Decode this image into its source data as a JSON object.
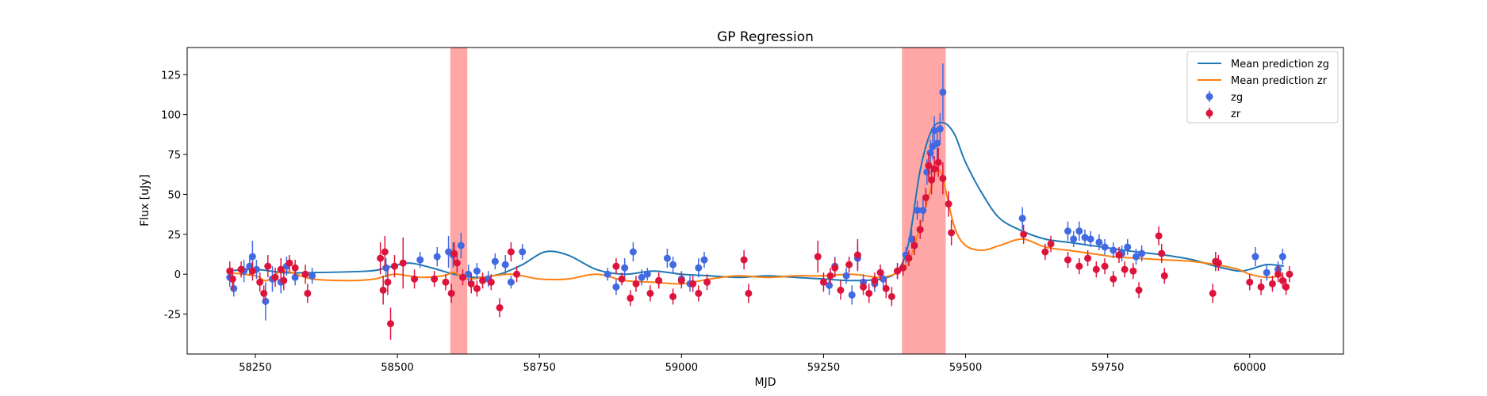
{
  "chart_data": {
    "type": "scatter",
    "title": "GP Regression",
    "xlabel": "MJD",
    "ylabel": "Flux [uJy]",
    "xlim": [
      58130,
      60165
    ],
    "ylim": [
      -50,
      142
    ],
    "xticks": [
      58250,
      58500,
      58750,
      59000,
      59250,
      59500,
      59750,
      60000
    ],
    "yticks": [
      -25,
      0,
      25,
      50,
      75,
      100,
      125
    ],
    "grid": false,
    "legend_position": "top-right",
    "colors": {
      "zg_line": "#1f77b4",
      "zr_line": "#ff7f0e",
      "zg_points": "#4169e1",
      "zr_points": "#dc143c",
      "shade": "#ff8080"
    },
    "shaded_regions": [
      [
        58593,
        58623
      ],
      [
        59388,
        59465
      ]
    ],
    "legend": [
      {
        "label": "Mean prediction zg",
        "kind": "line",
        "color": "#1f77b4"
      },
      {
        "label": "Mean prediction zr",
        "kind": "line",
        "color": "#ff7f0e"
      },
      {
        "label": "zg",
        "kind": "errorbar",
        "color": "#4169e1"
      },
      {
        "label": "zr",
        "kind": "errorbar",
        "color": "#dc143c"
      }
    ],
    "series": [
      {
        "name": "Mean prediction zg",
        "kind": "line",
        "color": "#1f77b4",
        "x": [
          58200,
          58250,
          58300,
          58350,
          58450,
          58480,
          58520,
          58560,
          58600,
          58640,
          58680,
          58720,
          58760,
          58800,
          58850,
          58900,
          58950,
          59000,
          59050,
          59100,
          59150,
          59200,
          59250,
          59300,
          59350,
          59380,
          59400,
          59420,
          59440,
          59460,
          59480,
          59500,
          59530,
          59560,
          59600,
          59640,
          59680,
          59720,
          59760,
          59800,
          59850,
          59900,
          59940,
          59980,
          60000,
          60030,
          60060
        ],
        "y": [
          2,
          3,
          1,
          1,
          2,
          4,
          7,
          4,
          0,
          -2,
          0,
          6,
          14,
          12,
          3,
          0,
          2,
          0,
          -1,
          -2,
          -1,
          -2,
          -3,
          -4,
          -3,
          2,
          20,
          65,
          90,
          95,
          88,
          70,
          50,
          35,
          27,
          22,
          20,
          18,
          16,
          14,
          12,
          9,
          5,
          2,
          3,
          6,
          5
        ]
      },
      {
        "name": "Mean prediction zr",
        "kind": "line",
        "color": "#ff7f0e",
        "x": [
          58200,
          58250,
          58270,
          58300,
          58350,
          58420,
          58460,
          58480,
          58500,
          58540,
          58580,
          58600,
          58620,
          58650,
          58700,
          58750,
          58800,
          58850,
          58900,
          58950,
          59000,
          59050,
          59100,
          59150,
          59200,
          59250,
          59300,
          59350,
          59380,
          59400,
          59420,
          59440,
          59450,
          59460,
          59480,
          59500,
          59530,
          59560,
          59600,
          59640,
          59680,
          59720,
          59760,
          59800,
          59850,
          59900,
          59940,
          59980,
          60000,
          60030,
          60060
        ],
        "y": [
          1,
          -1,
          -4,
          2,
          -3,
          -4,
          -3,
          -1,
          0,
          -2,
          -1,
          1,
          -3,
          -2,
          0,
          -3,
          -3,
          0,
          -4,
          -5,
          -6,
          -3,
          -1,
          -2,
          -1,
          -1,
          0,
          -2,
          1,
          8,
          30,
          55,
          65,
          60,
          30,
          18,
          15,
          18,
          22,
          17,
          15,
          13,
          11,
          10,
          9,
          8,
          6,
          3,
          0,
          -2,
          -1
        ]
      },
      {
        "name": "zg",
        "kind": "errorbar",
        "color": "#4169e1",
        "points": [
          [
            58205,
            -2,
            6
          ],
          [
            58212,
            -9,
            5
          ],
          [
            58230,
            2,
            7
          ],
          [
            58240,
            5,
            6
          ],
          [
            58245,
            11,
            10
          ],
          [
            58252,
            3,
            6
          ],
          [
            58268,
            -17,
            12
          ],
          [
            58280,
            -3,
            8
          ],
          [
            58295,
            -5,
            7
          ],
          [
            58305,
            5,
            6
          ],
          [
            58320,
            -2,
            5
          ],
          [
            58350,
            -1,
            5
          ],
          [
            58480,
            4,
            6
          ],
          [
            58540,
            9,
            5
          ],
          [
            58570,
            11,
            6
          ],
          [
            58590,
            14,
            10
          ],
          [
            58598,
            12,
            8
          ],
          [
            58612,
            18,
            8
          ],
          [
            58625,
            0,
            6
          ],
          [
            58640,
            2,
            5
          ],
          [
            58660,
            -3,
            5
          ],
          [
            58672,
            8,
            5
          ],
          [
            58690,
            6,
            6
          ],
          [
            58700,
            -5,
            4
          ],
          [
            58720,
            14,
            5
          ],
          [
            58870,
            0,
            4
          ],
          [
            58885,
            -8,
            5
          ],
          [
            58900,
            4,
            6
          ],
          [
            58915,
            14,
            6
          ],
          [
            58930,
            -2,
            5
          ],
          [
            58940,
            0,
            4
          ],
          [
            58960,
            -4,
            5
          ],
          [
            58975,
            10,
            6
          ],
          [
            58985,
            6,
            5
          ],
          [
            59000,
            -3,
            5
          ],
          [
            59015,
            -6,
            5
          ],
          [
            59030,
            4,
            6
          ],
          [
            59040,
            9,
            5
          ],
          [
            59260,
            -7,
            6
          ],
          [
            59270,
            5,
            6
          ],
          [
            59290,
            -1,
            5
          ],
          [
            59300,
            -13,
            6
          ],
          [
            59310,
            10,
            7
          ],
          [
            59320,
            -5,
            5
          ],
          [
            59340,
            -6,
            5
          ],
          [
            59355,
            -3,
            5
          ],
          [
            59380,
            2,
            5
          ],
          [
            59395,
            12,
            5
          ],
          [
            59405,
            22,
            6
          ],
          [
            59415,
            40,
            6
          ],
          [
            59425,
            40,
            7
          ],
          [
            59432,
            64,
            8
          ],
          [
            59438,
            76,
            8
          ],
          [
            59442,
            80,
            8
          ],
          [
            59445,
            90,
            9
          ],
          [
            59450,
            82,
            10
          ],
          [
            59455,
            91,
            10
          ],
          [
            59460,
            114,
            18
          ],
          [
            59600,
            35,
            7
          ],
          [
            59680,
            27,
            6
          ],
          [
            59690,
            22,
            5
          ],
          [
            59700,
            27,
            6
          ],
          [
            59710,
            23,
            5
          ],
          [
            59720,
            22,
            5
          ],
          [
            59735,
            20,
            5
          ],
          [
            59745,
            17,
            5
          ],
          [
            59760,
            15,
            5
          ],
          [
            59775,
            13,
            5
          ],
          [
            59785,
            17,
            5
          ],
          [
            59800,
            11,
            5
          ],
          [
            59810,
            13,
            5
          ],
          [
            60010,
            11,
            6
          ],
          [
            60030,
            1,
            5
          ],
          [
            60050,
            3,
            5
          ],
          [
            60058,
            11,
            5
          ]
        ]
      },
      {
        "name": "zr",
        "kind": "errorbar",
        "color": "#dc143c",
        "points": [
          [
            58205,
            2,
            6
          ],
          [
            58210,
            -3,
            7
          ],
          [
            58225,
            3,
            5
          ],
          [
            58245,
            2,
            6
          ],
          [
            58258,
            -5,
            6
          ],
          [
            58265,
            -12,
            5
          ],
          [
            58272,
            5,
            7
          ],
          [
            58285,
            -2,
            6
          ],
          [
            58295,
            3,
            7
          ],
          [
            58300,
            -4,
            6
          ],
          [
            58310,
            7,
            5
          ],
          [
            58320,
            4,
            5
          ],
          [
            58338,
            0,
            6
          ],
          [
            58342,
            -12,
            6
          ],
          [
            58470,
            10,
            10
          ],
          [
            58475,
            -10,
            9
          ],
          [
            58478,
            14,
            10
          ],
          [
            58483,
            -5,
            8
          ],
          [
            58488,
            -31,
            10
          ],
          [
            58495,
            5,
            7
          ],
          [
            58510,
            7,
            16
          ],
          [
            58530,
            -3,
            6
          ],
          [
            58565,
            -3,
            5
          ],
          [
            58585,
            -5,
            5
          ],
          [
            58595,
            -12,
            6
          ],
          [
            58600,
            13,
            7
          ],
          [
            58605,
            7,
            6
          ],
          [
            58615,
            -2,
            5
          ],
          [
            58630,
            -6,
            6
          ],
          [
            58640,
            -9,
            5
          ],
          [
            58650,
            -4,
            5
          ],
          [
            58665,
            -5,
            5
          ],
          [
            58680,
            -21,
            6
          ],
          [
            58700,
            14,
            6
          ],
          [
            58710,
            0,
            5
          ],
          [
            58885,
            5,
            5
          ],
          [
            58895,
            -3,
            4
          ],
          [
            58910,
            -15,
            5
          ],
          [
            58920,
            -6,
            5
          ],
          [
            58945,
            -12,
            5
          ],
          [
            58960,
            -4,
            5
          ],
          [
            58985,
            -14,
            5
          ],
          [
            59000,
            -4,
            5
          ],
          [
            59020,
            -6,
            5
          ],
          [
            59030,
            -12,
            5
          ],
          [
            59045,
            -5,
            5
          ],
          [
            59110,
            9,
            6
          ],
          [
            59118,
            -12,
            6
          ],
          [
            59240,
            11,
            10
          ],
          [
            59250,
            -5,
            6
          ],
          [
            59262,
            -1,
            5
          ],
          [
            59270,
            4,
            6
          ],
          [
            59280,
            -10,
            6
          ],
          [
            59295,
            6,
            5
          ],
          [
            59310,
            12,
            10
          ],
          [
            59320,
            -8,
            5
          ],
          [
            59330,
            -12,
            6
          ],
          [
            59340,
            -4,
            5
          ],
          [
            59350,
            1,
            5
          ],
          [
            59360,
            -9,
            6
          ],
          [
            59370,
            -14,
            6
          ],
          [
            59380,
            2,
            5
          ],
          [
            59390,
            4,
            5
          ],
          [
            59400,
            10,
            5
          ],
          [
            59410,
            18,
            6
          ],
          [
            59420,
            28,
            6
          ],
          [
            59430,
            48,
            6
          ],
          [
            59435,
            68,
            8
          ],
          [
            59440,
            59,
            9
          ],
          [
            59445,
            66,
            8
          ],
          [
            59452,
            70,
            9
          ],
          [
            59460,
            60,
            10
          ],
          [
            59470,
            44,
            8
          ],
          [
            59475,
            26,
            8
          ],
          [
            59602,
            25,
            6
          ],
          [
            59640,
            14,
            5
          ],
          [
            59650,
            19,
            5
          ],
          [
            59680,
            9,
            5
          ],
          [
            59700,
            5,
            5
          ],
          [
            59715,
            10,
            5
          ],
          [
            59730,
            3,
            5
          ],
          [
            59745,
            5,
            5
          ],
          [
            59760,
            -3,
            5
          ],
          [
            59770,
            12,
            5
          ],
          [
            59780,
            3,
            5
          ],
          [
            59795,
            2,
            5
          ],
          [
            59805,
            -10,
            5
          ],
          [
            59840,
            24,
            6
          ],
          [
            59845,
            13,
            6
          ],
          [
            59850,
            -1,
            5
          ],
          [
            59935,
            -12,
            6
          ],
          [
            59940,
            8,
            6
          ],
          [
            59945,
            7,
            5
          ],
          [
            60000,
            -5,
            5
          ],
          [
            60020,
            -8,
            5
          ],
          [
            60040,
            -6,
            5
          ],
          [
            60050,
            0,
            5
          ],
          [
            60058,
            -4,
            5
          ],
          [
            60064,
            -8,
            5
          ],
          [
            60070,
            0,
            5
          ]
        ]
      }
    ]
  }
}
